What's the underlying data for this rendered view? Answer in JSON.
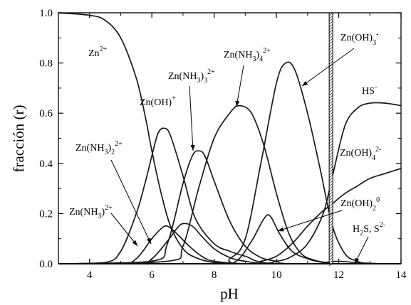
{
  "chart_data": {
    "type": "line",
    "xlabel": "pH",
    "ylabel": "fracción (r)",
    "xlim": [
      3,
      14
    ],
    "ylim": [
      0,
      1.0
    ],
    "xticks": [
      "4",
      "6",
      "8",
      "10",
      "12",
      "14"
    ],
    "yticks": [
      "0.0",
      "0.2",
      "0.4",
      "0.6",
      "0.8",
      "1.0"
    ],
    "grid": false,
    "marker_line": {
      "x": 11.75,
      "label": ""
    },
    "series": [
      {
        "name": "Zn2+",
        "label_main": "Zn",
        "label_sup": "2+",
        "x": [
          3,
          4,
          4.5,
          5,
          5.5,
          5.8,
          6,
          6.3,
          6.6,
          7,
          7.4,
          8,
          9,
          10,
          12,
          14
        ],
        "y": [
          1.0,
          0.99,
          0.97,
          0.9,
          0.74,
          0.58,
          0.45,
          0.28,
          0.15,
          0.06,
          0.025,
          0.005,
          0,
          0,
          0,
          0
        ]
      },
      {
        "name": "Zn(NH3)2+",
        "label_main": "Zn(NH",
        "label_sub": "3",
        "label_close": ")",
        "label_sup": "2+",
        "x": [
          3,
          5,
          5.5,
          6,
          6.3,
          6.5,
          6.8,
          7.2,
          7.6,
          8,
          9,
          10,
          14
        ],
        "y": [
          0,
          0,
          0.02,
          0.1,
          0.14,
          0.15,
          0.12,
          0.07,
          0.03,
          0.01,
          0,
          0,
          0
        ]
      },
      {
        "name": "Zn(OH)+",
        "label_main": "Zn(OH)",
        "label_sup": "+",
        "x": [
          3,
          4.5,
          5,
          5.5,
          5.8,
          6,
          6.2,
          6.4,
          6.6,
          7,
          7.4,
          8,
          8.5,
          9,
          10,
          14
        ],
        "y": [
          0,
          0.005,
          0.05,
          0.2,
          0.33,
          0.43,
          0.52,
          0.54,
          0.51,
          0.35,
          0.18,
          0.08,
          0.05,
          0.03,
          0,
          0
        ]
      },
      {
        "name": "Zn(NH3)2 2+",
        "label_main": "Zn(NH",
        "label_sub": "3",
        "label_close": ")",
        "label_sub2": "2",
        "label_sup": "2+",
        "x": [
          3,
          5.5,
          6,
          6.5,
          6.8,
          7,
          7.3,
          7.6,
          8,
          8.5,
          9,
          10,
          14
        ],
        "y": [
          0,
          0,
          0.02,
          0.09,
          0.14,
          0.16,
          0.15,
          0.11,
          0.06,
          0.025,
          0.01,
          0,
          0
        ]
      },
      {
        "name": "Zn(NH3)3 2+",
        "label_main": "Zn(NH",
        "label_sub": "3",
        "label_close": ")",
        "label_sub2": "3",
        "label_sup": "2+",
        "x": [
          3,
          6,
          6.5,
          7,
          7.3,
          7.5,
          7.7,
          8,
          8.5,
          9,
          9.5,
          10,
          10.5,
          14
        ],
        "y": [
          0,
          0.01,
          0.08,
          0.32,
          0.43,
          0.45,
          0.43,
          0.33,
          0.17,
          0.07,
          0.025,
          0.01,
          0,
          0
        ]
      },
      {
        "name": "Zn(NH3)4 2+",
        "label_main": "Zn(NH",
        "label_sub": "3",
        "label_close": ")",
        "label_sub2": "4",
        "label_sup": "2+",
        "x": [
          3,
          6.5,
          7,
          7.5,
          8,
          8.5,
          8.8,
          9.2,
          9.6,
          10,
          10.4,
          10.8,
          11.2,
          11.6,
          12,
          14
        ],
        "y": [
          0,
          0.01,
          0.07,
          0.3,
          0.5,
          0.6,
          0.63,
          0.6,
          0.47,
          0.28,
          0.12,
          0.04,
          0.015,
          0.005,
          0,
          0
        ]
      },
      {
        "name": "Zn(OH)2 0",
        "label_main": "Zn(OH)",
        "label_sub": "2",
        "label_sup": "0",
        "x": [
          3,
          8,
          8.7,
          9.2,
          9.6,
          9.8,
          10.1,
          10.5,
          11,
          11.5,
          12,
          14
        ],
        "y": [
          0,
          0,
          0.01,
          0.09,
          0.18,
          0.19,
          0.12,
          0.05,
          0.02,
          0.005,
          0,
          0
        ]
      },
      {
        "name": "Zn(OH)3 -",
        "label_main": "Zn(OH)",
        "label_sub": "3",
        "label_sup": "-",
        "x": [
          3,
          8,
          8.5,
          9,
          9.5,
          10,
          10.3,
          10.6,
          11,
          11.4,
          11.8,
          12.2,
          12.6,
          13,
          14
        ],
        "y": [
          0,
          0,
          0.02,
          0.1,
          0.4,
          0.72,
          0.8,
          0.77,
          0.6,
          0.38,
          0.15,
          0.04,
          0.01,
          0,
          0
        ]
      },
      {
        "name": "Zn(OH)4 2-",
        "label_main": "Zn(OH)",
        "label_sub": "4",
        "label_sup": "2-",
        "x": [
          3,
          9,
          9.5,
          10,
          10.5,
          11,
          11.4,
          11.8,
          12.2,
          12.6,
          13,
          13.5,
          14
        ],
        "y": [
          0,
          0,
          0.01,
          0.03,
          0.08,
          0.15,
          0.2,
          0.24,
          0.28,
          0.31,
          0.34,
          0.36,
          0.38
        ]
      },
      {
        "name": "HS-",
        "label_main": "HS",
        "label_sup": "-",
        "x": [
          3,
          9,
          10,
          10.5,
          11,
          11.5,
          11.8,
          12.2,
          12.6,
          13,
          13.5,
          14
        ],
        "y": [
          0,
          0,
          0.01,
          0.03,
          0.08,
          0.2,
          0.35,
          0.55,
          0.62,
          0.64,
          0.64,
          0.63
        ]
      },
      {
        "name": "H2S, S2-",
        "label_main": "H",
        "label_sub": "2",
        "label_rest": "S, S",
        "label_sup": "2-",
        "x": [
          3,
          11,
          11.5,
          12,
          12.5,
          13,
          13.5,
          14
        ],
        "y": [
          0,
          0,
          0.005,
          0.01,
          0.005,
          0.002,
          0,
          0
        ]
      }
    ]
  }
}
